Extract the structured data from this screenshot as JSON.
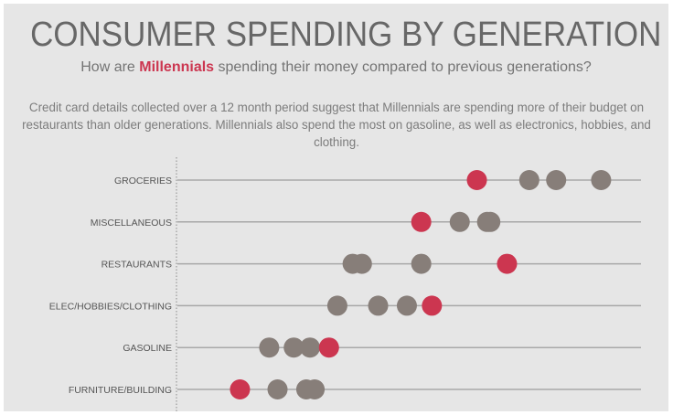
{
  "header": {
    "title": "CONSUMER SPENDING BY GENERATION",
    "subtitle_before": "How are ",
    "subtitle_highlight": "Millennials",
    "subtitle_after": " spending their money compared to previous generations?",
    "description": "Credit card details collected over a 12 month period suggest that Millennials are spending more of their budget on restaurants than older generations. Millennials also spend the most on gasoline, as well as electronics, hobbies, and clothing."
  },
  "colors": {
    "millennials": "#cc3650",
    "other_generations": "#877e79",
    "gridline": "#a8a8a8",
    "axis": "#8a8a8a"
  },
  "chart_data": {
    "type": "dot",
    "x_range": [
      0,
      100
    ],
    "grid": true,
    "categories": [
      "GROCERIES",
      "MISCELLANEOUS",
      "RESTAURANTS",
      "ELEC/HOBBIES/CLOTHING",
      "GASOLINE",
      "FURNITURE/BUILDING"
    ],
    "series": [
      {
        "highlight": false,
        "values": [
          75.9,
          60.9,
          37.8,
          34.5,
          19.8,
          21.6
        ]
      },
      {
        "highlight": false,
        "values": [
          81.7,
          66.8,
          39.8,
          43.3,
          25.1,
          27.8
        ]
      },
      {
        "highlight": false,
        "values": [
          91.4,
          67.5,
          52.6,
          49.5,
          28.6,
          29.6
        ]
      },
      {
        "highlight": true,
        "values": [
          64.6,
          52.6,
          71.1,
          54.9,
          32.7,
          13.5
        ]
      }
    ]
  }
}
